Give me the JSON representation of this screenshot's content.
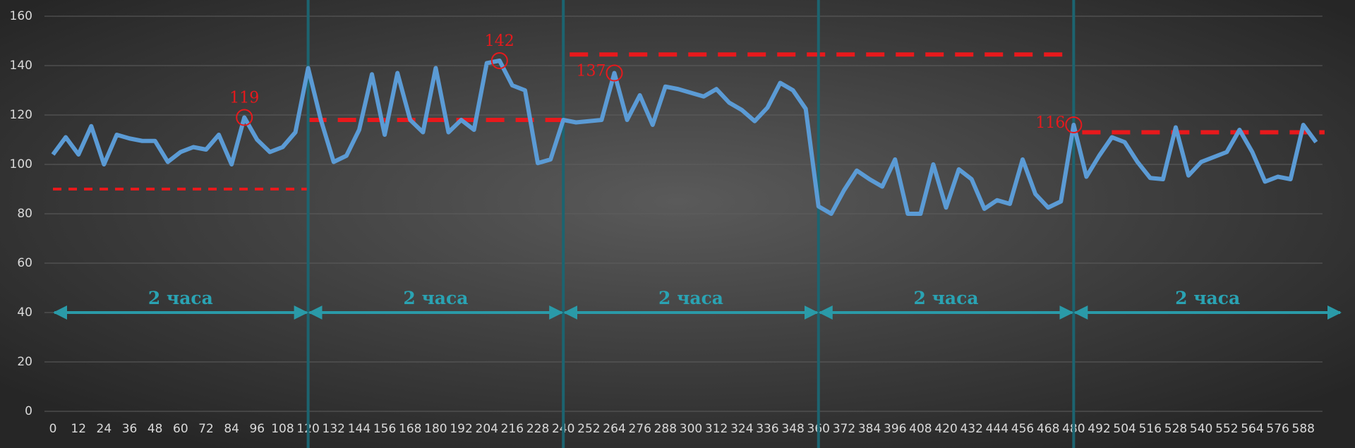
{
  "chart_data": {
    "type": "line",
    "x": [
      0,
      6,
      12,
      18,
      24,
      30,
      36,
      42,
      48,
      54,
      60,
      66,
      72,
      78,
      84,
      90,
      96,
      102,
      108,
      114,
      120,
      126,
      132,
      138,
      144,
      150,
      156,
      162,
      168,
      174,
      180,
      186,
      192,
      198,
      204,
      210,
      216,
      222,
      228,
      234,
      240,
      246,
      252,
      258,
      264,
      270,
      276,
      282,
      288,
      294,
      300,
      306,
      312,
      318,
      324,
      330,
      336,
      342,
      348,
      354,
      360,
      366,
      372,
      378,
      384,
      390,
      396,
      402,
      408,
      414,
      420,
      426,
      432,
      438,
      444,
      450,
      456,
      462,
      468,
      474,
      480,
      486,
      492,
      498,
      504,
      510,
      516,
      522,
      528,
      534,
      540,
      546,
      552,
      558,
      564,
      570,
      576,
      582,
      588,
      594
    ],
    "series": [
      {
        "color": "#5b9bd5",
        "values": [
          104,
          111,
          104,
          115.5,
          100,
          112,
          110.5,
          109.5,
          109.5,
          101,
          105,
          107,
          106,
          112,
          100,
          119,
          110,
          105,
          107,
          113,
          139,
          118,
          101,
          103.5,
          114,
          136.5,
          112,
          137,
          118,
          113,
          139,
          113,
          118,
          114,
          141,
          142,
          132,
          130,
          100.5,
          102,
          118,
          117,
          117.5,
          118,
          137,
          118,
          128,
          116,
          131.5,
          130.5,
          129,
          127.5,
          130.5,
          125,
          122,
          117.5,
          123,
          133,
          130,
          122.5,
          83,
          80,
          89.5,
          97.5,
          94,
          91,
          102,
          80,
          80,
          100,
          82.5,
          98,
          94,
          82,
          85.5,
          84,
          102,
          88,
          82.5,
          85,
          116,
          95,
          103.5,
          111,
          109,
          101,
          94.5,
          94,
          115,
          95.5,
          101,
          103,
          105,
          114,
          105,
          93,
          95,
          94,
          116,
          109
        ]
      }
    ],
    "xlim": [
      -4,
      606
    ],
    "ylim": [
      0,
      160
    ],
    "yticks": [
      0,
      20,
      40,
      60,
      80,
      100,
      120,
      140,
      160
    ],
    "xticks": [
      0,
      12,
      24,
      36,
      48,
      60,
      72,
      84,
      96,
      108,
      120,
      132,
      144,
      156,
      168,
      180,
      192,
      204,
      216,
      228,
      240,
      252,
      264,
      276,
      288,
      300,
      312,
      324,
      336,
      348,
      360,
      372,
      384,
      396,
      408,
      420,
      432,
      444,
      456,
      468,
      480,
      492,
      504,
      516,
      528,
      540,
      552,
      564,
      576,
      588
    ],
    "grid": true,
    "boundaries": [
      120,
      240,
      360,
      480
    ],
    "periods": [
      {
        "label": "2 часа",
        "start": 0,
        "end": 120,
        "y": 40
      },
      {
        "label": "2 часа",
        "start": 120,
        "end": 240,
        "y": 40
      },
      {
        "label": "2 часа",
        "start": 240,
        "end": 360,
        "y": 40
      },
      {
        "label": "2 часа",
        "start": 360,
        "end": 480,
        "y": 40
      },
      {
        "label": "2 часа",
        "start": 480,
        "end": 606,
        "y": 40
      }
    ],
    "reference_lines": [
      {
        "start": 0,
        "end": 120,
        "value": 90,
        "style": "thin"
      },
      {
        "start": 120,
        "end": 240,
        "value": 118,
        "style": "thick"
      },
      {
        "start": 243,
        "end": 480,
        "value": 144.5,
        "style": "thick"
      },
      {
        "start": 484,
        "end": 598,
        "value": 113,
        "style": "thick"
      }
    ],
    "annotations": [
      {
        "x": 90,
        "value": 119,
        "position": "above"
      },
      {
        "x": 210,
        "value": 142,
        "position": "above"
      },
      {
        "x": 264,
        "value": 137,
        "position": "left"
      },
      {
        "x": 480,
        "value": 116,
        "position": "left"
      }
    ]
  }
}
